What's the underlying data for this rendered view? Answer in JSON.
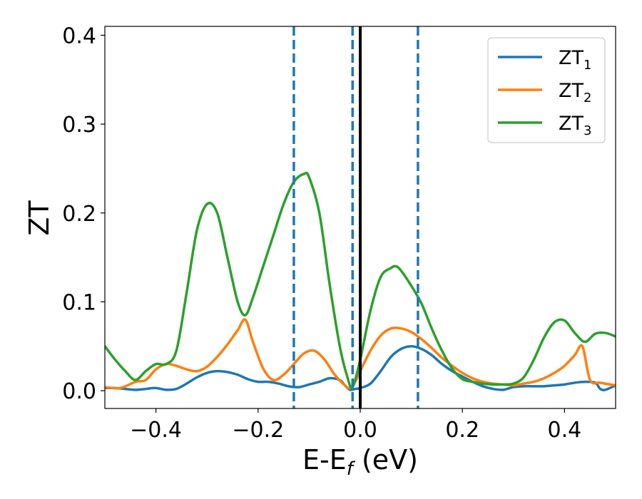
{
  "chart_data": {
    "type": "line",
    "title": "",
    "xlabel": "E-E",
    "xlabel_sub": "f",
    "xlabel_unit": " (eV)",
    "ylabel": "ZT",
    "xlim": [
      -0.5,
      0.5
    ],
    "ylim": [
      -0.02,
      0.41
    ],
    "xticks": [
      -0.4,
      -0.2,
      0.0,
      0.2,
      0.4
    ],
    "xtick_labels": [
      "−0.4",
      "−0.2",
      "0.0",
      "0.2",
      "0.4"
    ],
    "yticks": [
      0.0,
      0.1,
      0.2,
      0.3,
      0.4
    ],
    "ytick_labels": [
      "0.0",
      "0.1",
      "0.2",
      "0.3",
      "0.4"
    ],
    "grid": false,
    "legend_position": "top-right",
    "vlines": [
      {
        "x": -0.13,
        "style": "dashed",
        "color": "#1f77b4"
      },
      {
        "x": -0.015,
        "style": "dashed",
        "color": "#1f77b4"
      },
      {
        "x": 0.0,
        "style": "solid",
        "color": "#000000"
      },
      {
        "x": 0.113,
        "style": "dashed",
        "color": "#1f77b4"
      }
    ],
    "series": [
      {
        "name": "ZT",
        "name_sub": "1",
        "color": "#1f77b4",
        "x": [
          -0.5,
          -0.48,
          -0.46,
          -0.44,
          -0.42,
          -0.4,
          -0.38,
          -0.36,
          -0.34,
          -0.32,
          -0.3,
          -0.28,
          -0.26,
          -0.24,
          -0.22,
          -0.2,
          -0.18,
          -0.16,
          -0.14,
          -0.12,
          -0.1,
          -0.08,
          -0.06,
          -0.04,
          -0.03,
          -0.02,
          -0.01,
          0.0,
          0.02,
          0.04,
          0.06,
          0.08,
          0.1,
          0.12,
          0.14,
          0.16,
          0.18,
          0.2,
          0.22,
          0.24,
          0.26,
          0.28,
          0.3,
          0.32,
          0.34,
          0.36,
          0.38,
          0.4,
          0.42,
          0.44,
          0.46,
          0.47,
          0.48,
          0.5
        ],
        "y": [
          0.003,
          0.003,
          0.002,
          0.001,
          0.002,
          0.003,
          0.001,
          0.002,
          0.008,
          0.015,
          0.02,
          0.022,
          0.021,
          0.018,
          0.013,
          0.01,
          0.01,
          0.008,
          0.005,
          0.004,
          0.007,
          0.01,
          0.014,
          0.012,
          0.006,
          0.001,
          0.002,
          0.003,
          0.008,
          0.022,
          0.038,
          0.047,
          0.05,
          0.047,
          0.04,
          0.03,
          0.022,
          0.016,
          0.01,
          0.005,
          0.002,
          0.001,
          0.004,
          0.005,
          0.005,
          0.005,
          0.006,
          0.007,
          0.009,
          0.01,
          0.009,
          0.002,
          0.001,
          0.006
        ]
      },
      {
        "name": "ZT",
        "name_sub": "2",
        "color": "#ff7f0e",
        "x": [
          -0.5,
          -0.47,
          -0.44,
          -0.42,
          -0.4,
          -0.38,
          -0.36,
          -0.34,
          -0.32,
          -0.3,
          -0.28,
          -0.26,
          -0.24,
          -0.225,
          -0.21,
          -0.19,
          -0.17,
          -0.15,
          -0.13,
          -0.11,
          -0.09,
          -0.07,
          -0.05,
          -0.03,
          -0.02,
          -0.01,
          0.0,
          0.02,
          0.04,
          0.06,
          0.08,
          0.1,
          0.12,
          0.14,
          0.16,
          0.18,
          0.2,
          0.22,
          0.24,
          0.26,
          0.28,
          0.3,
          0.32,
          0.34,
          0.36,
          0.38,
          0.4,
          0.42,
          0.435,
          0.45,
          0.47,
          0.5
        ],
        "y": [
          0.004,
          0.003,
          0.01,
          0.012,
          0.024,
          0.03,
          0.028,
          0.024,
          0.022,
          0.027,
          0.038,
          0.052,
          0.068,
          0.08,
          0.055,
          0.025,
          0.012,
          0.018,
          0.03,
          0.042,
          0.045,
          0.035,
          0.018,
          0.006,
          0.003,
          0.01,
          0.022,
          0.045,
          0.062,
          0.07,
          0.07,
          0.066,
          0.058,
          0.048,
          0.037,
          0.028,
          0.02,
          0.014,
          0.01,
          0.008,
          0.007,
          0.006,
          0.008,
          0.01,
          0.014,
          0.02,
          0.028,
          0.04,
          0.05,
          0.012,
          0.009,
          0.006
        ]
      },
      {
        "name": "ZT",
        "name_sub": "3",
        "color": "#2ca02c",
        "x": [
          -0.5,
          -0.48,
          -0.46,
          -0.44,
          -0.42,
          -0.4,
          -0.38,
          -0.36,
          -0.34,
          -0.32,
          -0.3,
          -0.28,
          -0.26,
          -0.24,
          -0.225,
          -0.21,
          -0.19,
          -0.17,
          -0.15,
          -0.13,
          -0.11,
          -0.1,
          -0.08,
          -0.06,
          -0.04,
          -0.025,
          -0.015,
          0.0,
          0.02,
          0.04,
          0.06,
          0.07,
          0.08,
          0.1,
          0.12,
          0.14,
          0.16,
          0.18,
          0.2,
          0.22,
          0.24,
          0.26,
          0.28,
          0.3,
          0.32,
          0.34,
          0.36,
          0.38,
          0.4,
          0.42,
          0.44,
          0.46,
          0.48,
          0.5
        ],
        "y": [
          0.05,
          0.035,
          0.022,
          0.012,
          0.022,
          0.03,
          0.03,
          0.045,
          0.11,
          0.18,
          0.21,
          0.2,
          0.15,
          0.1,
          0.085,
          0.105,
          0.14,
          0.175,
          0.21,
          0.235,
          0.244,
          0.24,
          0.2,
          0.12,
          0.05,
          0.015,
          0.004,
          0.035,
          0.09,
          0.128,
          0.138,
          0.14,
          0.135,
          0.118,
          0.098,
          0.07,
          0.045,
          0.025,
          0.013,
          0.01,
          0.008,
          0.007,
          0.007,
          0.008,
          0.015,
          0.035,
          0.06,
          0.077,
          0.079,
          0.065,
          0.055,
          0.064,
          0.065,
          0.061
        ]
      }
    ]
  }
}
